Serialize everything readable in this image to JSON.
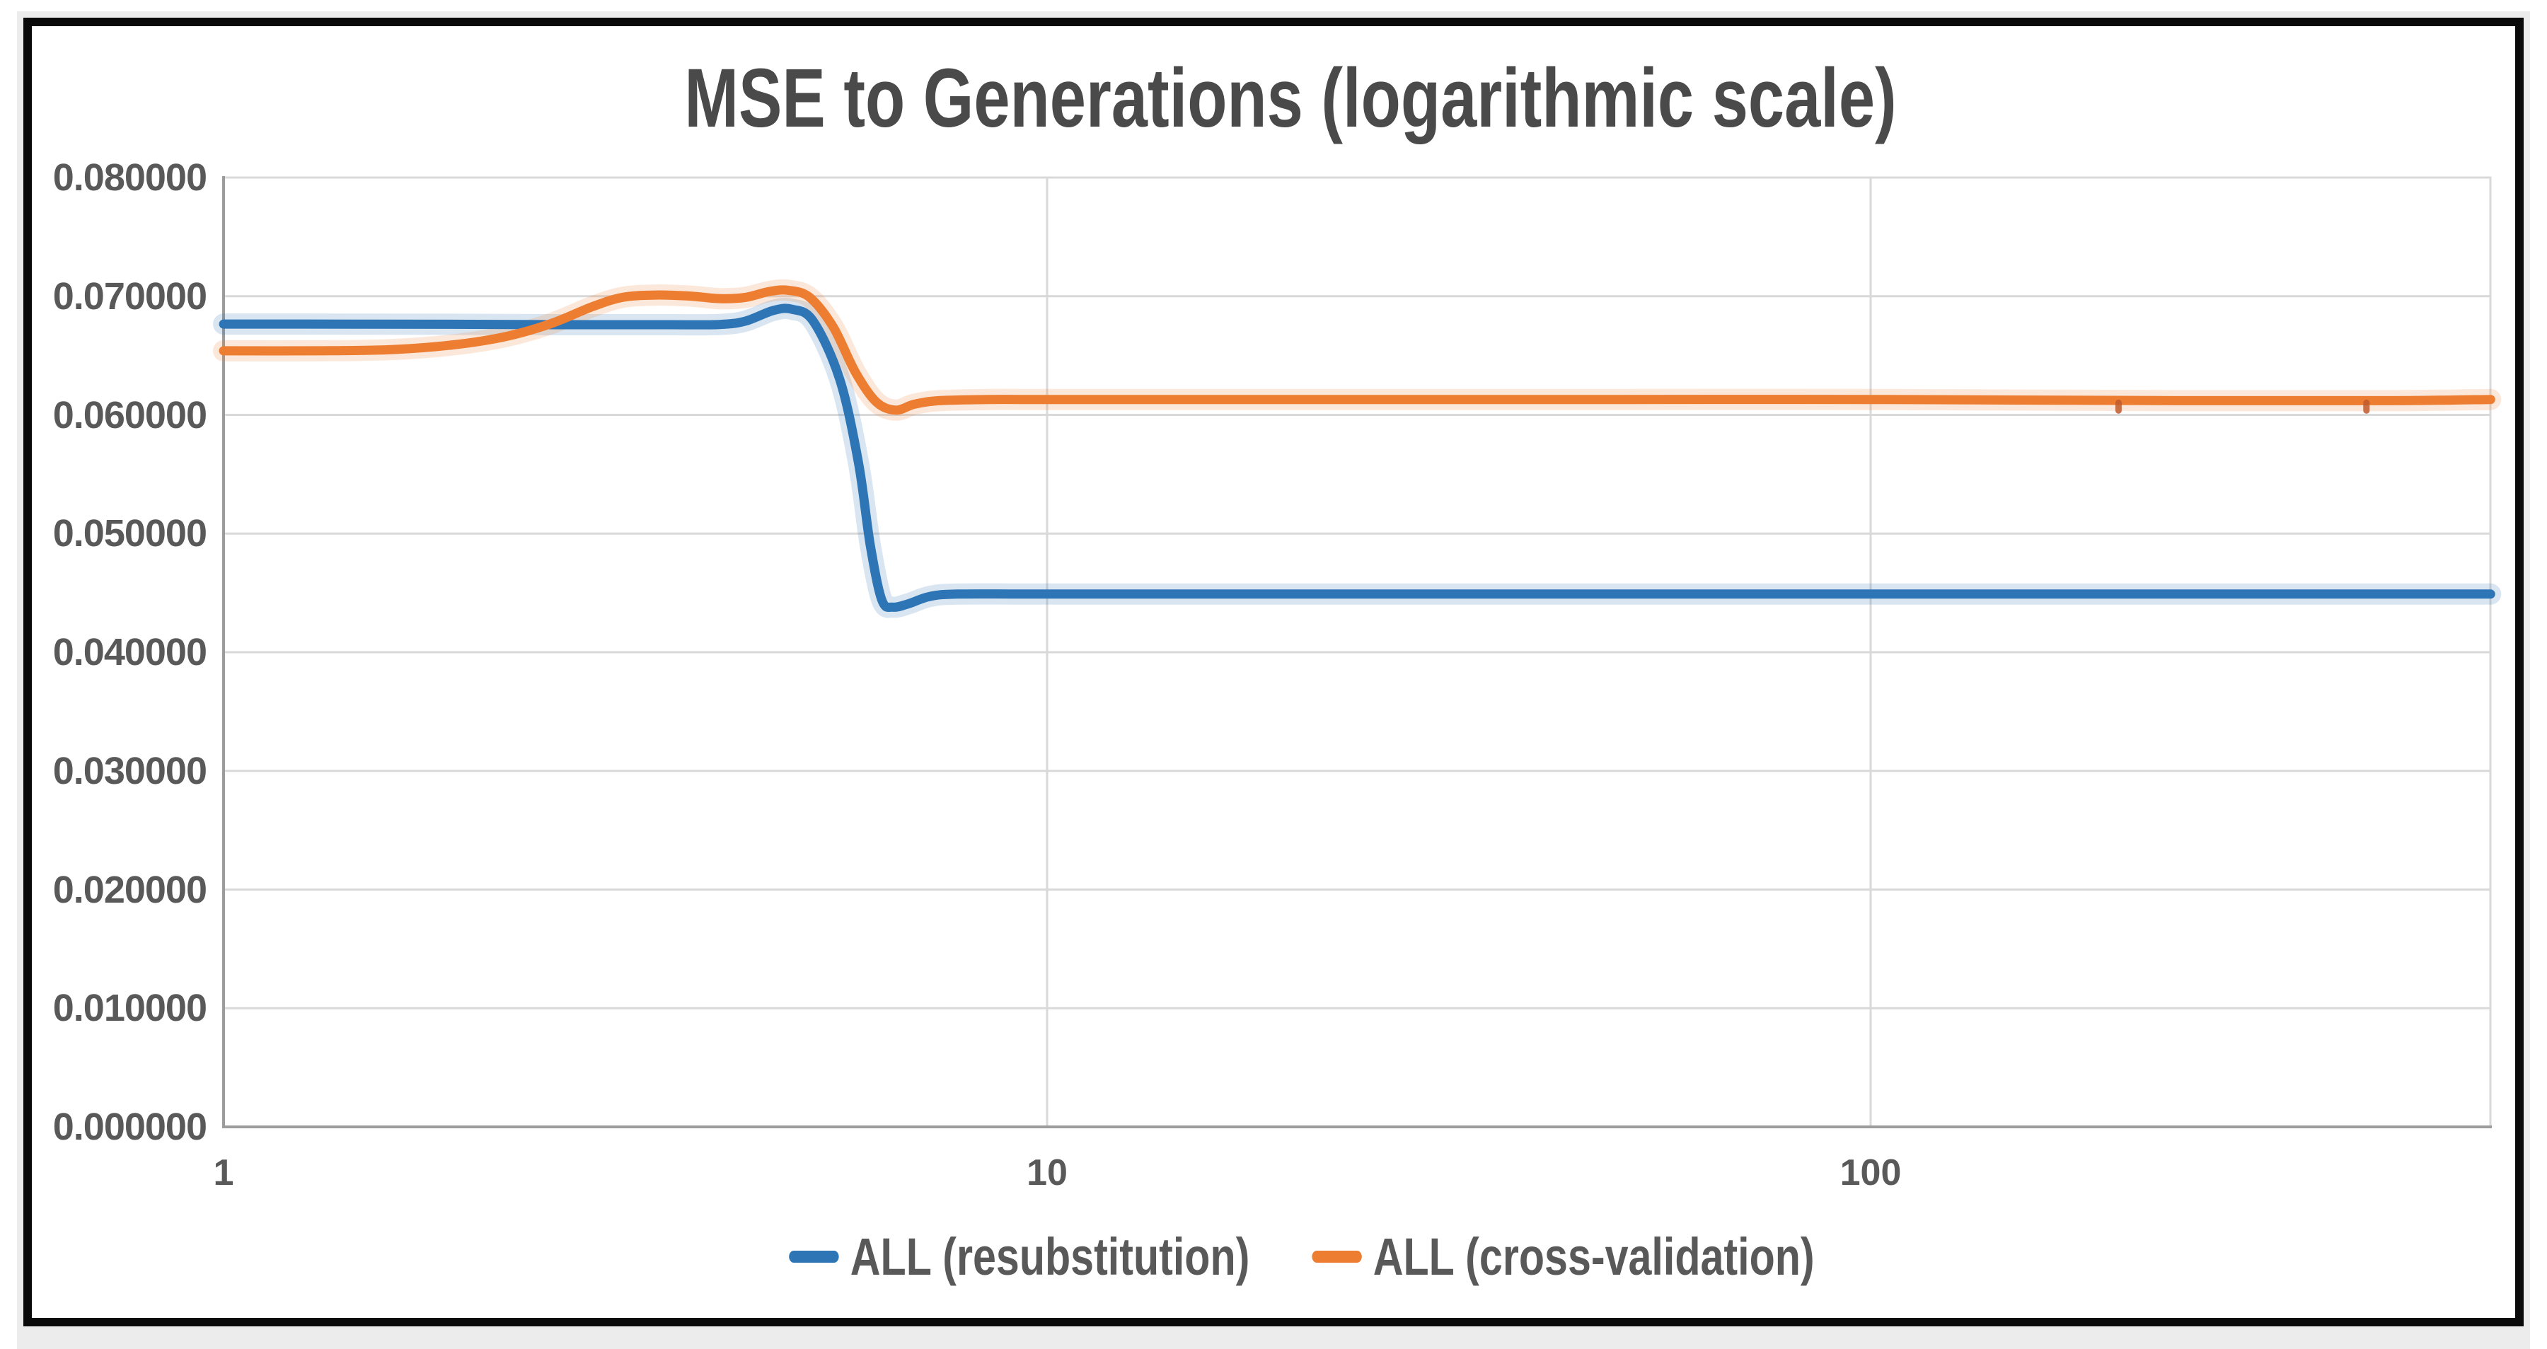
{
  "title": "MSE to Generations (logarithmic scale)",
  "colors": {
    "blue": "#2E75B6",
    "orange": "#ED7D31",
    "orange_dark": "#C0592B",
    "grid": "#D9D9D9",
    "axis": "#9C9C9C",
    "tick_text": "#595959",
    "title_text": "#4A4A4A",
    "frame_black": "#0A0A0A",
    "page_gray": "#ECECEC"
  },
  "chart_data": {
    "type": "line",
    "title": "MSE to Generations (logarithmic scale)",
    "xlabel": "",
    "ylabel": "",
    "x_scale": "log",
    "xlim": [
      1,
      566
    ],
    "ylim": [
      0,
      0.08
    ],
    "grid": "horizontal-and-decade-vertical",
    "legend_position": "bottom",
    "x_ticks": [
      {
        "label": "1",
        "value": 1
      },
      {
        "label": "10",
        "value": 10
      },
      {
        "label": "100",
        "value": 100
      }
    ],
    "y_ticks": [
      {
        "label": "0.080000",
        "value": 0.08
      },
      {
        "label": "0.070000",
        "value": 0.07
      },
      {
        "label": "0.060000",
        "value": 0.06
      },
      {
        "label": "0.050000",
        "value": 0.05
      },
      {
        "label": "0.040000",
        "value": 0.04
      },
      {
        "label": "0.030000",
        "value": 0.03
      },
      {
        "label": "0.020000",
        "value": 0.02
      },
      {
        "label": "0.010000",
        "value": 0.01
      },
      {
        "label": "0.000000",
        "value": 0
      }
    ],
    "series": [
      {
        "name": "ALL (resubstitution)",
        "color": "#2E75B6",
        "points": [
          [
            1,
            0.06765
          ],
          [
            1.5,
            0.06765
          ],
          [
            2,
            0.06763
          ],
          [
            2.5,
            0.0676
          ],
          [
            3,
            0.0676
          ],
          [
            3.5,
            0.0676
          ],
          [
            4,
            0.06762
          ],
          [
            4.3,
            0.0679
          ],
          [
            4.65,
            0.0688
          ],
          [
            4.9,
            0.0689
          ],
          [
            5.2,
            0.0679
          ],
          [
            5.6,
            0.063
          ],
          [
            5.9,
            0.056
          ],
          [
            6.1,
            0.049
          ],
          [
            6.3,
            0.0444
          ],
          [
            6.5,
            0.0438
          ],
          [
            6.8,
            0.0441
          ],
          [
            7.2,
            0.0447
          ],
          [
            7.8,
            0.0449
          ],
          [
            10,
            0.0449
          ],
          [
            20,
            0.0449
          ],
          [
            50,
            0.0449
          ],
          [
            100,
            0.0449
          ],
          [
            200,
            0.0449
          ],
          [
            400,
            0.0449
          ],
          [
            566,
            0.0449
          ]
        ]
      },
      {
        "name": "ALL (cross-validation)",
        "color": "#ED7D31",
        "marker_x": [
          200,
          400
        ],
        "points": [
          [
            1,
            0.0654
          ],
          [
            1.3,
            0.0654
          ],
          [
            1.6,
            0.0655
          ],
          [
            1.9,
            0.0659
          ],
          [
            2.2,
            0.0666
          ],
          [
            2.5,
            0.0677
          ],
          [
            2.8,
            0.0691
          ],
          [
            3.05,
            0.0699
          ],
          [
            3.35,
            0.0701
          ],
          [
            3.7,
            0.07
          ],
          [
            4,
            0.0698
          ],
          [
            4.3,
            0.0699
          ],
          [
            4.6,
            0.0704
          ],
          [
            4.85,
            0.0705
          ],
          [
            5.15,
            0.0699
          ],
          [
            5.5,
            0.0674
          ],
          [
            5.85,
            0.0636
          ],
          [
            6.2,
            0.0611
          ],
          [
            6.55,
            0.0604
          ],
          [
            6.9,
            0.0609
          ],
          [
            7.4,
            0.0612
          ],
          [
            8.5,
            0.0613
          ],
          [
            10,
            0.0613
          ],
          [
            20,
            0.0613
          ],
          [
            50,
            0.0613
          ],
          [
            100,
            0.0613
          ],
          [
            233,
            0.0612
          ],
          [
            430,
            0.0612
          ],
          [
            566,
            0.0613
          ]
        ]
      }
    ]
  }
}
